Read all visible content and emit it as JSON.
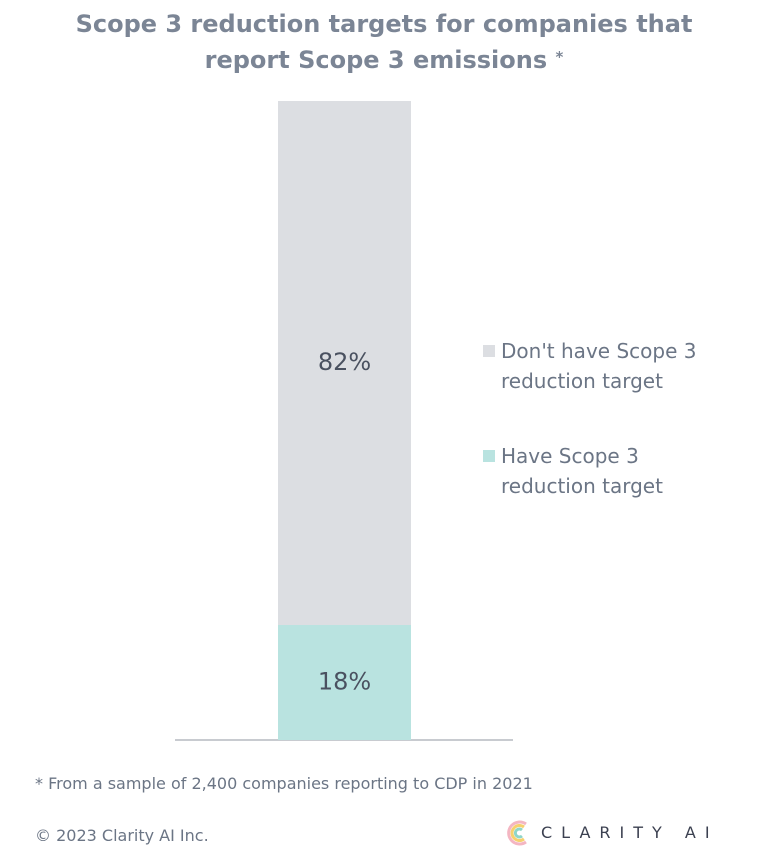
{
  "chart_data": {
    "type": "stacked-bar",
    "title": "Scope 3 reduction targets for companies that report Scope 3 emissions",
    "title_marker": "*",
    "categories": [
      null
    ],
    "series": [
      {
        "name": "Have Scope 3 reduction target",
        "color": "#b9e3e0",
        "values": [
          18
        ],
        "value_labels": [
          "18%"
        ]
      },
      {
        "name": "Don't have Scope 3 reduction target",
        "color": "#dcdee2",
        "values": [
          82
        ],
        "value_labels": [
          "82%"
        ]
      }
    ],
    "legend_position": "right",
    "footnote": "* From a sample of 2,400 companies reporting to CDP in 2021",
    "copyright": "© 2023 Clarity AI Inc.",
    "brand": "CLARITY AI"
  }
}
